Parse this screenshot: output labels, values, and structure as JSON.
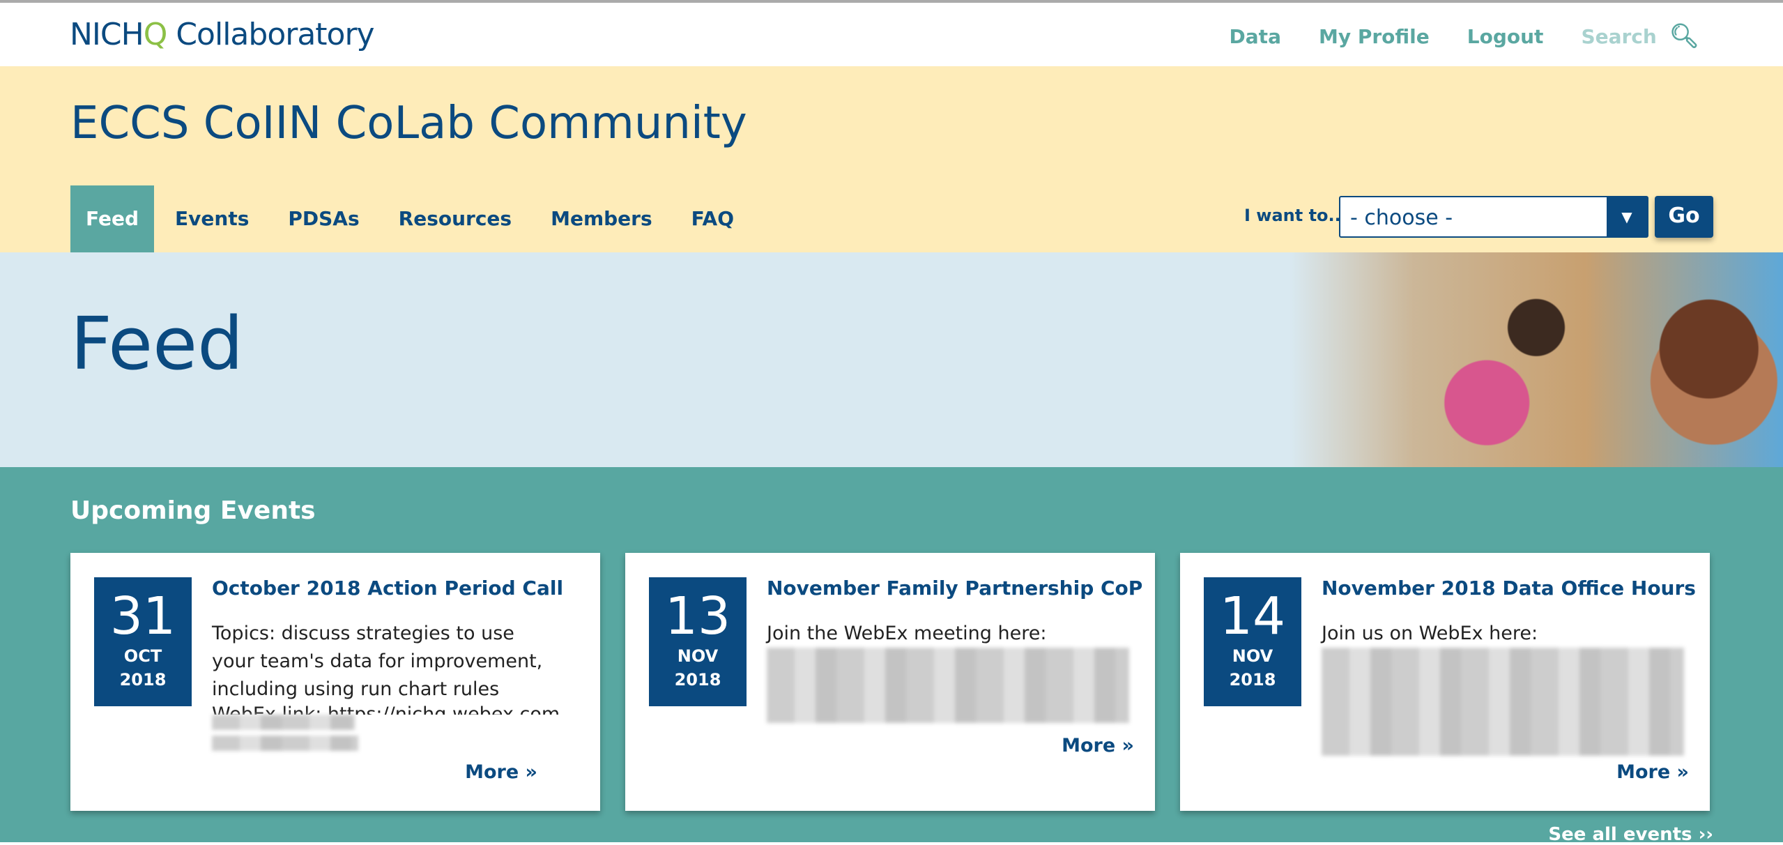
{
  "topbar": {
    "logo_main": "NICH",
    "logo_q": "Q",
    "logo_rest": " Collaboratory",
    "links": [
      "Data",
      "My Profile",
      "Logout"
    ],
    "search_label": "Search",
    "search_icon": "search-icon"
  },
  "community": {
    "title": "ECCS CoIIN CoLab Community",
    "tabs": [
      "Feed",
      "Events",
      "PDSAs",
      "Resources",
      "Members",
      "FAQ"
    ],
    "active_tab": "Feed",
    "iwant_label": "I want to...",
    "select_value": "- choose -",
    "go_label": "Go"
  },
  "hero": {
    "title": "Feed"
  },
  "events": {
    "heading": "Upcoming Events",
    "see_all": "See all events ››",
    "cards": [
      {
        "day": "31",
        "month": "OCT",
        "year": "2018",
        "title": "October 2018 Action Period Call",
        "body": "Topics: discuss strategies to use your team's data for improvement, including using run chart rules",
        "cut_line": "WebEx link: https://nichq.webex.com",
        "more": "More »"
      },
      {
        "day": "13",
        "month": "NOV",
        "year": "2018",
        "title": "November Family Partnership CoP",
        "body": "Join the WebEx meeting here:",
        "more": "More »"
      },
      {
        "day": "14",
        "month": "NOV",
        "year": "2018",
        "title": "November 2018 Data Office Hours",
        "body": "Join us on WebEx here:",
        "more": "More »"
      }
    ]
  },
  "colors": {
    "navy": "#0b4a80",
    "teal": "#58a7a1",
    "yellow": "#feecb9",
    "light_blue": "#d9e9f1",
    "logo_green": "#8cc046"
  }
}
